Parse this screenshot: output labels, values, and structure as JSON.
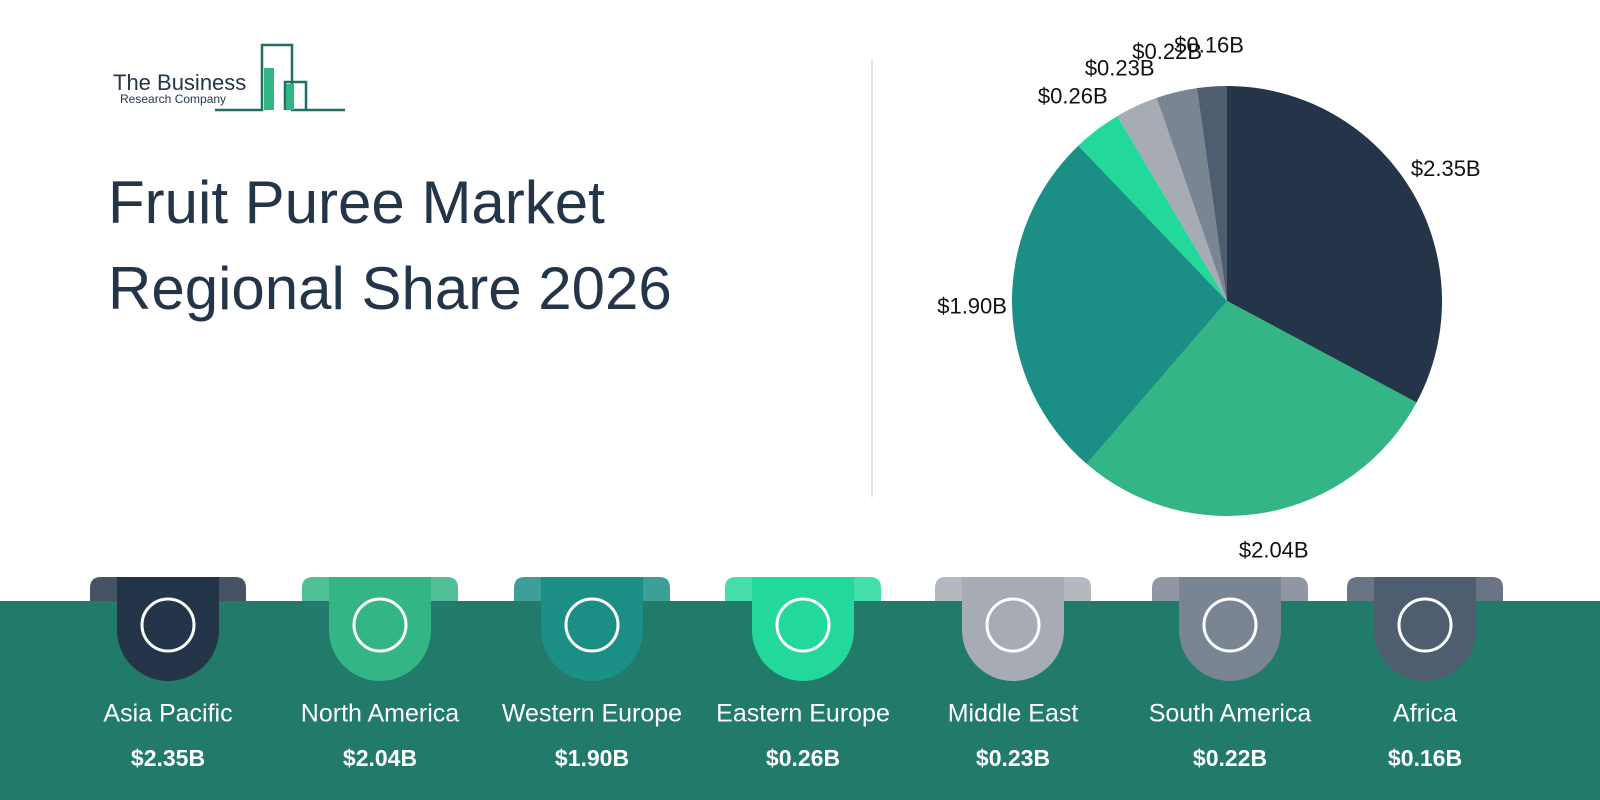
{
  "logo": {
    "line1": "The Business",
    "line2": "Research Company"
  },
  "chart_data": {
    "type": "pie",
    "title": "Fruit Puree Market Regional Share 2026",
    "categories": [
      "Asia Pacific",
      "North America",
      "Western Europe",
      "Eastern Europe",
      "Middle East",
      "South America",
      "Africa"
    ],
    "values": [
      2.35,
      2.04,
      1.9,
      0.26,
      0.23,
      0.22,
      0.16
    ],
    "value_labels": [
      "$2.35B",
      "$2.04B",
      "$1.90B",
      "$0.26B",
      "$0.23B",
      "$0.22B",
      "$0.16B"
    ],
    "colors": [
      "#253549",
      "#34b585",
      "#1b8f86",
      "#22d89a",
      "#a7abb4",
      "#7a8593",
      "#4f5d70"
    ]
  }
}
